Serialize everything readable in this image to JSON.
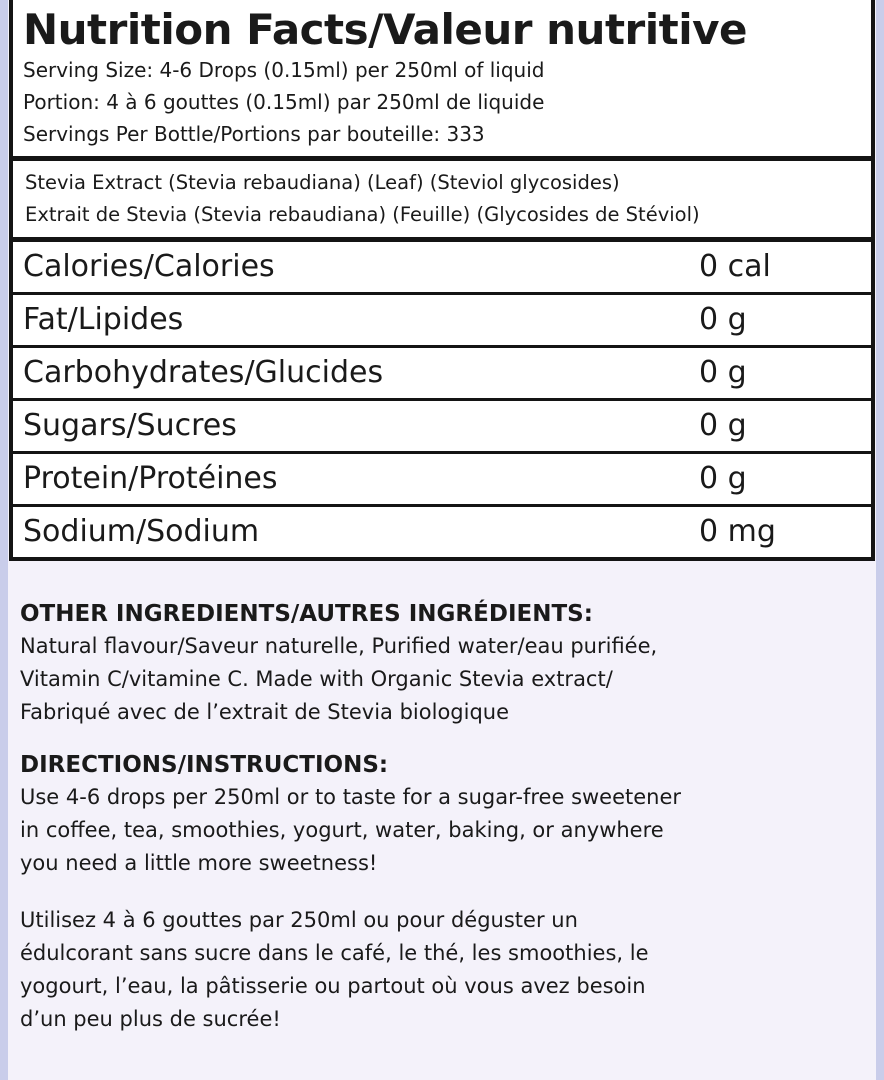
{
  "label": {
    "title": "Nutrition Facts/Valeur nutritive",
    "serving_lines": [
      "Serving Size: 4-6 Drops (0.15ml) per 250ml of liquid",
      "Portion: 4 à 6 gouttes (0.15ml) par 250ml de liquide",
      "Servings Per Bottle/Portions par bouteille: 333"
    ],
    "ingredient_lines": [
      "Stevia Extract (Stevia rebaudiana) (Leaf) (Steviol glycosides)",
      "Extrait de Stevia (Stevia rebaudiana) (Feuille) (Glycosides de Stéviol)"
    ],
    "nutrients": [
      {
        "name": "Calories/Calories",
        "value": "0 cal"
      },
      {
        "name": "Fat/Lipides",
        "value": "0 g"
      },
      {
        "name": "Carbohydrates/Glucides",
        "value": "0 g"
      },
      {
        "name": "Sugars/Sucres",
        "value": "0 g"
      },
      {
        "name": "Protein/Protéines",
        "value": "0 g"
      },
      {
        "name": "Sodium/Sodium",
        "value": "0 mg"
      }
    ]
  },
  "other_ingredients": {
    "heading": "OTHER INGREDIENTS/AUTRES INGRÉDIENTS:",
    "lines": [
      "Natural flavour/Saveur naturelle, Purified water/eau purifiée,",
      "Vitamin C/vitamine C. Made with Organic Stevia extract/",
      "Fabriqué avec de l’extrait de Stevia biologique"
    ]
  },
  "directions": {
    "heading": "DIRECTIONS/INSTRUCTIONS:",
    "english_lines": [
      "Use 4-6 drops per 250ml or to taste for a sugar-free sweetener",
      "in coffee, tea, smoothies, yogurt, water, baking, or anywhere",
      "you need a little more sweetness!"
    ],
    "french_lines": [
      "Utilisez 4 à 6 gouttes par 250ml ou pour déguster un",
      "édulcorant sans sucre dans le café, le thé, les smoothies, le",
      "yogourt, l’eau, la pâtisserie ou partout où vous avez besoin",
      "d’un peu plus de sucrée!"
    ]
  }
}
